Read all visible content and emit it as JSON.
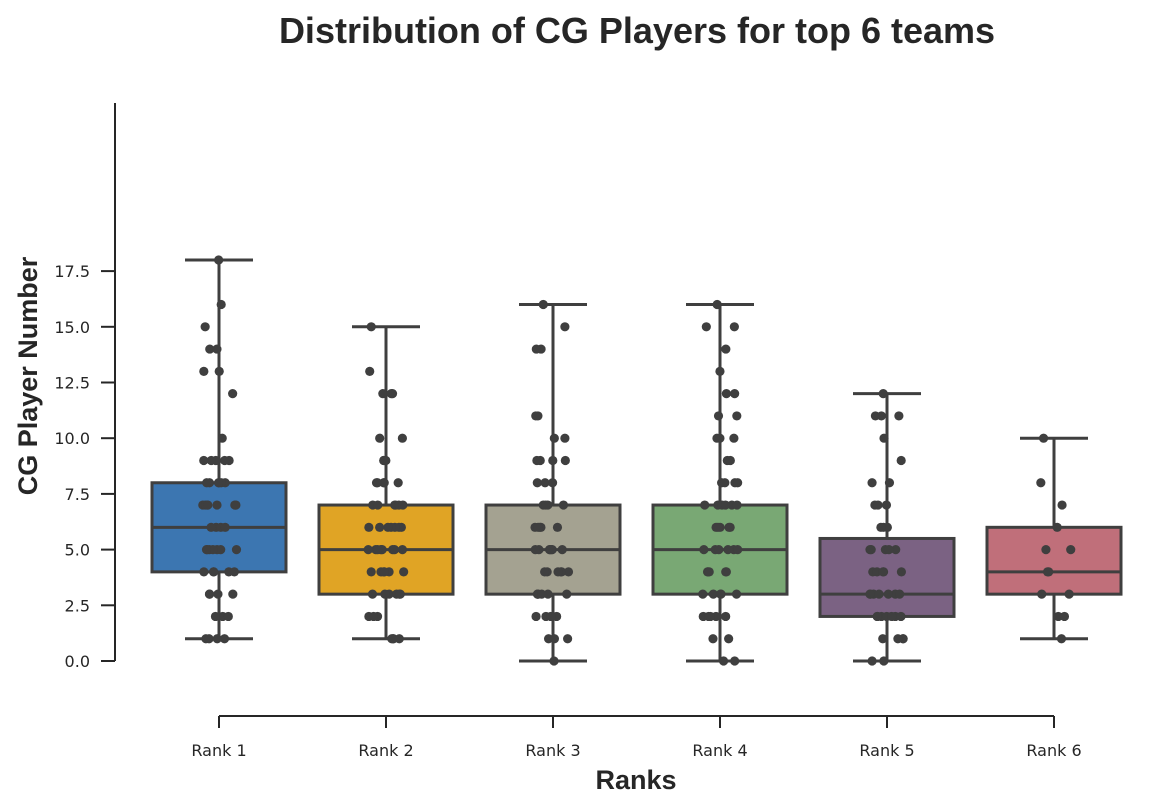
{
  "chart_data": {
    "type": "box",
    "title": "Distribution of CG Players for top 6 teams",
    "xlabel": "Ranks",
    "ylabel": "CG Player Number",
    "ylim": [
      -1.7,
      19.2
    ],
    "yticks": [
      "0.0",
      "2.5",
      "5.0",
      "7.5",
      "10.0",
      "12.5",
      "15.0",
      "17.5"
    ],
    "ytick_values": [
      0,
      2.5,
      5,
      7.5,
      10,
      12.5,
      15,
      17.5
    ],
    "categories": [
      "Rank 1",
      "Rank 2",
      "Rank 3",
      "Rank 4",
      "Rank 5",
      "Rank 6"
    ],
    "grid": false,
    "boxes": [
      {
        "category": "Rank 1",
        "color": "#3c76b1",
        "whislo": 1,
        "q1": 4,
        "median": 6,
        "q3": 8,
        "whishi": 18,
        "points": [
          18,
          16,
          15,
          14,
          14,
          13,
          13,
          12,
          10,
          9,
          9,
          9,
          9,
          9,
          8,
          8,
          8,
          8,
          8,
          8,
          7,
          7,
          7,
          7,
          7,
          7,
          7,
          7,
          6,
          6,
          6,
          6,
          5,
          5,
          5,
          5,
          5,
          5,
          5,
          4,
          4,
          4,
          4,
          4,
          3,
          3,
          3,
          3,
          2,
          2,
          2,
          1,
          1,
          1,
          1
        ]
      },
      {
        "category": "Rank 2",
        "color": "#e0a425",
        "whislo": 1,
        "q1": 3,
        "median": 5,
        "q3": 7,
        "whishi": 15,
        "points": [
          15,
          13,
          12,
          12,
          12,
          10,
          10,
          9,
          9,
          9,
          8,
          8,
          8,
          8,
          8,
          7,
          7,
          7,
          7,
          7,
          7,
          6,
          6,
          6,
          6,
          6,
          6,
          6,
          5,
          5,
          5,
          5,
          5,
          5,
          5,
          5,
          4,
          4,
          4,
          4,
          4,
          4,
          3,
          3,
          3,
          3,
          3,
          3,
          2,
          2,
          2,
          1,
          1,
          1,
          1
        ]
      },
      {
        "category": "Rank 3",
        "color": "#a4a291",
        "whislo": 0,
        "q1": 3,
        "median": 5,
        "q3": 7,
        "whishi": 16,
        "points": [
          16,
          15,
          14,
          14,
          11,
          11,
          10,
          10,
          9,
          9,
          9,
          9,
          8,
          8,
          8,
          7,
          7,
          7,
          7,
          6,
          6,
          6,
          6,
          6,
          5,
          5,
          5,
          5,
          5,
          5,
          5,
          4,
          4,
          4,
          4,
          4,
          4,
          3,
          3,
          3,
          3,
          3,
          3,
          2,
          2,
          2,
          2,
          1,
          1,
          1,
          0
        ]
      },
      {
        "category": "Rank 4",
        "color": "#79a874",
        "whislo": 0,
        "q1": 3,
        "median": 5,
        "q3": 7,
        "whishi": 16,
        "points": [
          16,
          15,
          15,
          14,
          13,
          12,
          12,
          11,
          11,
          10,
          10,
          10,
          9,
          9,
          8,
          8,
          8,
          8,
          7,
          7,
          7,
          7,
          7,
          7,
          6,
          6,
          6,
          6,
          6,
          5,
          5,
          5,
          5,
          5,
          5,
          4,
          4,
          4,
          4,
          4,
          3,
          3,
          3,
          3,
          3,
          2,
          2,
          2,
          2,
          2,
          1,
          1,
          0,
          0
        ]
      },
      {
        "category": "Rank 5",
        "color": "#7b6283",
        "whislo": 0,
        "q1": 2,
        "median": 3,
        "q3": 5.5,
        "whishi": 12,
        "points": [
          12,
          11,
          11,
          11,
          10,
          9,
          8,
          8,
          7,
          7,
          7,
          6,
          6,
          6,
          5,
          5,
          5,
          5,
          5,
          4,
          4,
          4,
          4,
          4,
          3,
          3,
          3,
          3,
          3,
          3,
          3,
          2,
          2,
          2,
          2,
          2,
          2,
          2,
          1,
          1,
          1,
          1,
          0,
          0
        ]
      },
      {
        "category": "Rank 6",
        "color": "#c06f7a",
        "whislo": 1,
        "q1": 3,
        "median": 4,
        "q3": 6,
        "whishi": 10,
        "points": [
          10,
          8,
          7,
          6,
          5,
          5,
          4,
          4,
          3,
          3,
          2,
          2,
          1
        ]
      }
    ]
  }
}
